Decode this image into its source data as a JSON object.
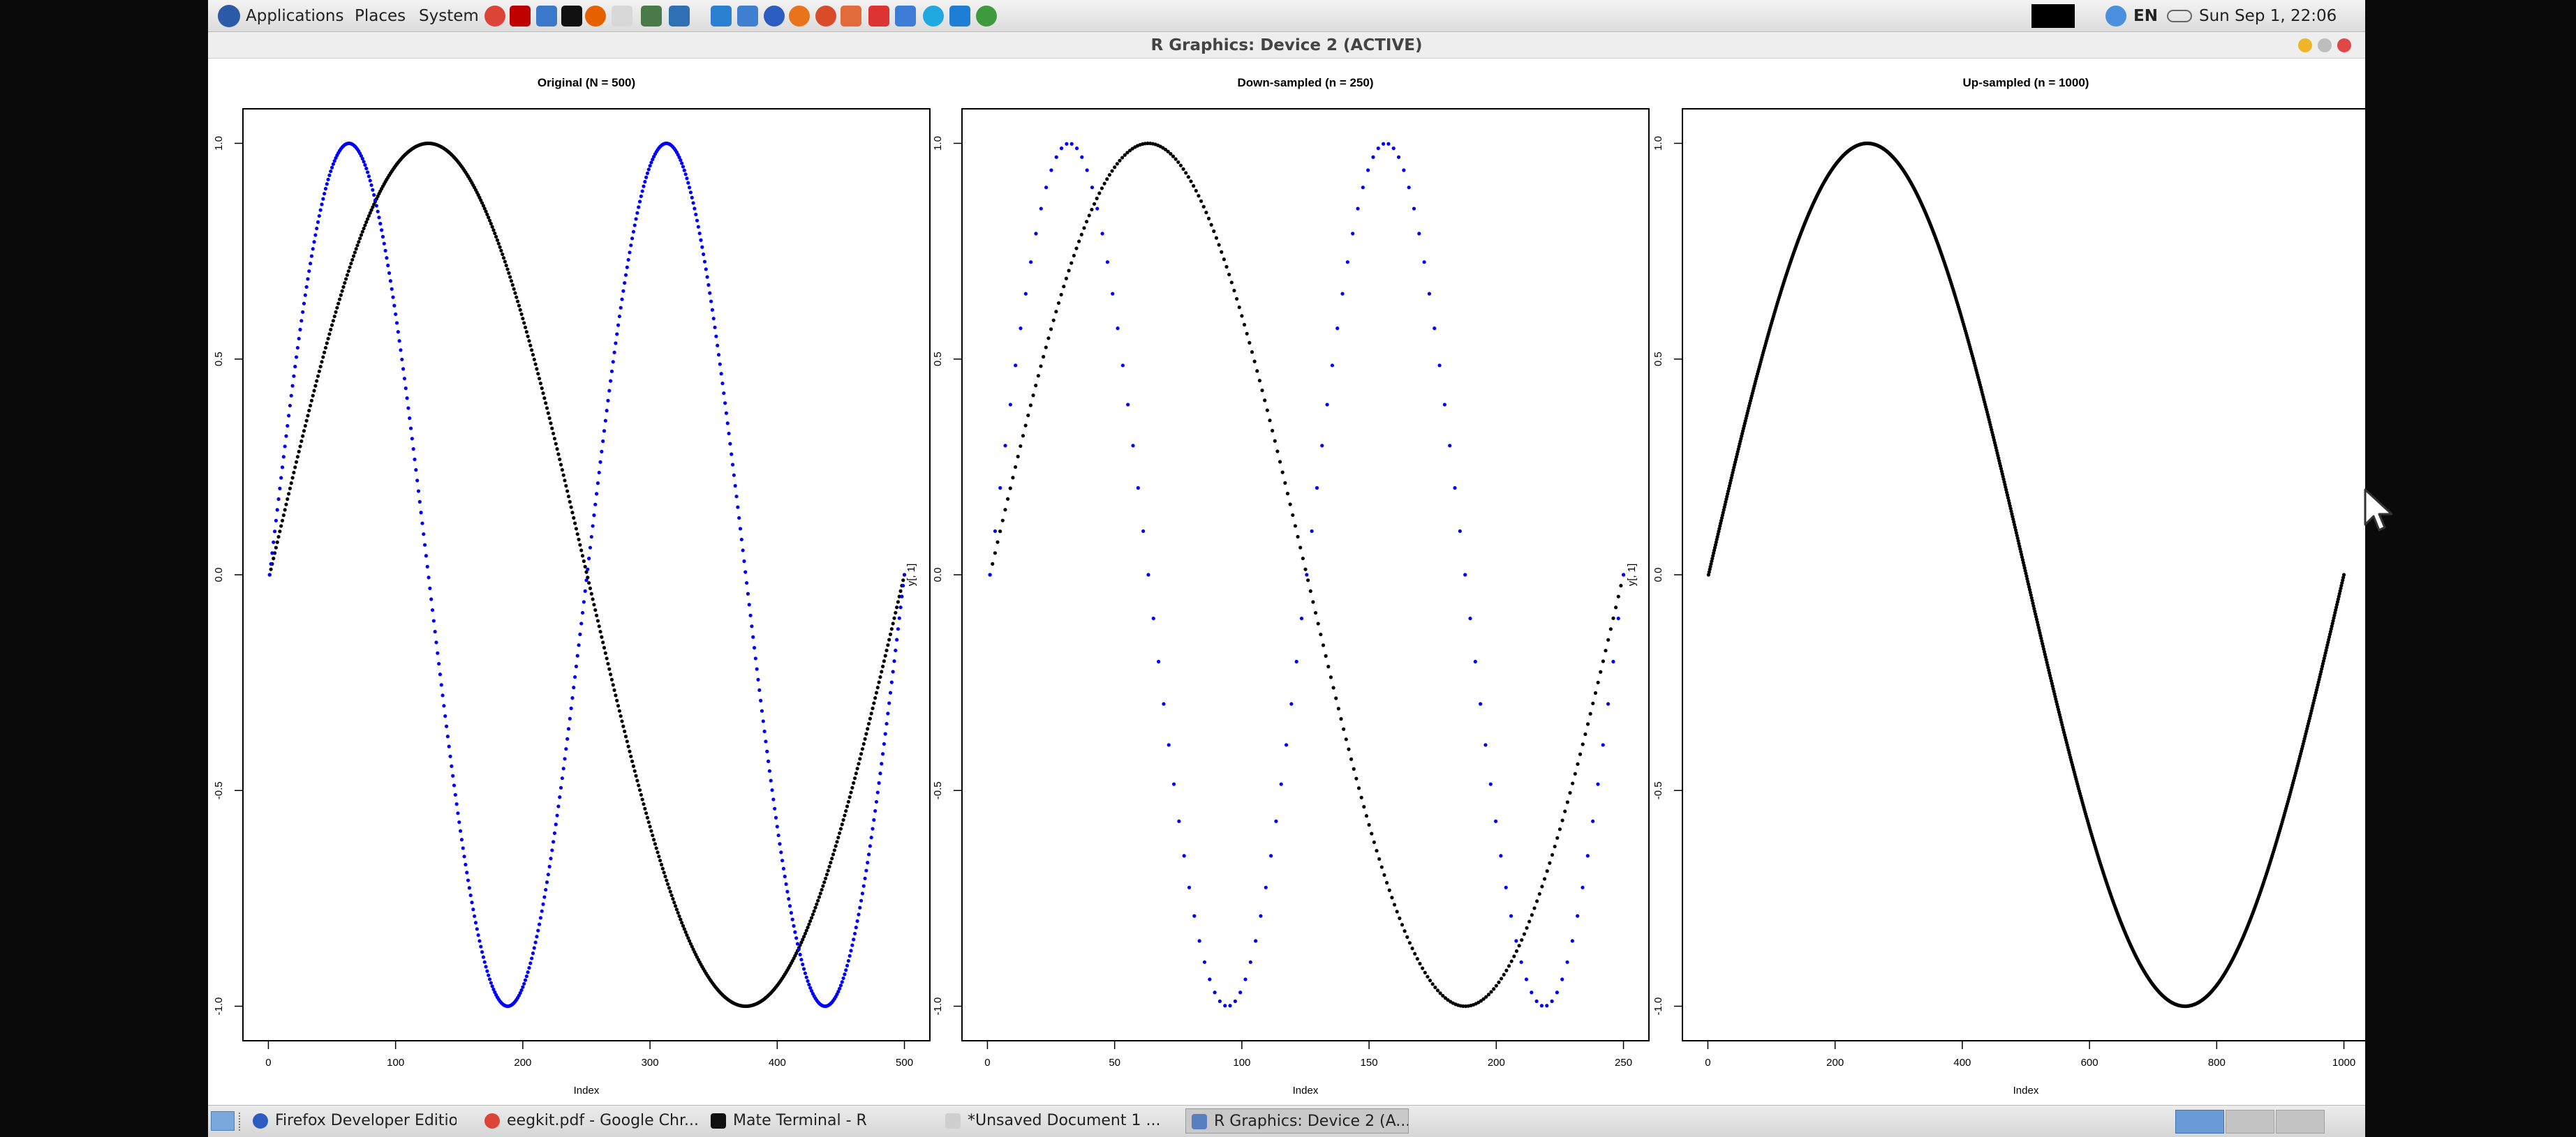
{
  "top_panel": {
    "menus": [
      "Applications",
      "Places",
      "System"
    ],
    "language": "EN",
    "clock": "Sun Sep  1, 22:06",
    "launchers": [
      {
        "name": "chrome-icon",
        "color": "#db4437"
      },
      {
        "name": "filezilla-icon",
        "color": "#bf0000"
      },
      {
        "name": "monitor-icon",
        "color": "#3a78c9"
      },
      {
        "name": "terminal-icon",
        "color": "#111111"
      },
      {
        "name": "firefox-icon",
        "color": "#e66000"
      },
      {
        "name": "text-editor-icon",
        "color": "#d8d8d8"
      },
      {
        "name": "image-viewer-icon",
        "color": "#4a7a4a"
      },
      {
        "name": "network-icon",
        "color": "#2f6fb3"
      },
      {
        "name": "rstudio-icon",
        "color": "#2a7fd0"
      },
      {
        "name": "files-icon",
        "color": "#3f7fcf"
      },
      {
        "name": "firefox-dev-icon",
        "color": "#2c5cbf"
      },
      {
        "name": "firefox-alt-icon",
        "color": "#e8731b"
      },
      {
        "name": "apps-icon",
        "color": "#d94c2a"
      },
      {
        "name": "tools-icon",
        "color": "#e36a3a"
      },
      {
        "name": "mail-icon",
        "color": "#d33"
      },
      {
        "name": "folder-icon",
        "color": "#3d7dd8"
      },
      {
        "name": "skype-icon",
        "color": "#20a8e0"
      },
      {
        "name": "vscode-icon",
        "color": "#1e7ed6"
      },
      {
        "name": "browser-green-icon",
        "color": "#3d9a3d"
      }
    ]
  },
  "window": {
    "title": "R Graphics: Device 2 (ACTIVE)"
  },
  "chart_data": [
    {
      "type": "scatter",
      "title": "Original (N = 500)",
      "xlabel": "Index",
      "ylabel": "y[, 1]",
      "xlim": [
        0,
        500
      ],
      "ylim": [
        -1,
        1
      ],
      "xticks": [
        "0",
        "100",
        "200",
        "300",
        "400",
        "500"
      ],
      "yticks": [
        "-1.0",
        "-0.5",
        "0.0",
        "0.5",
        "1.0"
      ],
      "series": [
        {
          "color": "#000000",
          "n": 500,
          "cycles": 1
        },
        {
          "color": "#0000ff",
          "n": 500,
          "cycles": 2
        }
      ]
    },
    {
      "type": "scatter",
      "title": "Down-sampled (n = 250)",
      "xlabel": "Index",
      "ylabel": "y[, 1]",
      "xlim": [
        0,
        250
      ],
      "ylim": [
        -1,
        1
      ],
      "xticks": [
        "0",
        "50",
        "100",
        "150",
        "200",
        "250"
      ],
      "yticks": [
        "-1.0",
        "-0.5",
        "0.0",
        "0.5",
        "1.0"
      ],
      "series": [
        {
          "color": "#000000",
          "n": 250,
          "cycles": 1
        },
        {
          "color": "#0000ff",
          "n": 125,
          "cycles": 2
        }
      ]
    },
    {
      "type": "scatter",
      "title": "Up-sampled (n = 1000)",
      "xlabel": "Index",
      "ylabel": "y[, 1]",
      "xlim": [
        0,
        1000
      ],
      "ylim": [
        -1,
        1
      ],
      "xticks": [
        "0",
        "200",
        "400",
        "600",
        "800",
        "1000"
      ],
      "yticks": [
        "-1.0",
        "-0.5",
        "0.0",
        "0.5",
        "1.0"
      ],
      "series": [
        {
          "color": "#000000",
          "n": 1000,
          "cycles": 1
        }
      ]
    }
  ],
  "taskbar": {
    "tasks": [
      {
        "label": "Firefox Developer Edition",
        "icon": "firefox-dev-icon",
        "color": "#2c5cbf"
      },
      {
        "label": "eegkit.pdf - Google Chr...",
        "icon": "chrome-icon",
        "color": "#db4437"
      },
      {
        "label": "Mate Terminal - R",
        "icon": "terminal-icon",
        "color": "#111111"
      },
      {
        "label": "*Unsaved Document 1 ...",
        "icon": "text-editor-icon",
        "color": "#cfcfcf"
      },
      {
        "label": "R Graphics: Device 2 (A...",
        "icon": "r-icon",
        "color": "#5a7fc0"
      }
    ]
  }
}
